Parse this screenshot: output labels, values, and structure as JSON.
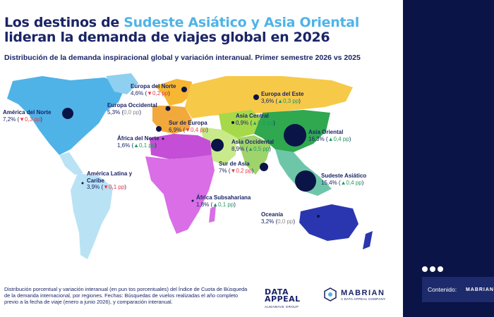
{
  "header": {
    "title_part1": "Los destinos de ",
    "title_highlight": "Sudeste Asiático y Asia Oriental",
    "title_part2": "lideran la demanda de viajes global en 2026",
    "subtitle": "Distribución de la demanda inspiracional global y variación interanual. Primer semestre 2026 vs 2025"
  },
  "chart_data": {
    "type": "bubble-map",
    "title": "Los destinos de Sudeste Asiático y Asia Oriental lideran la demanda de viajes global en 2026",
    "subtitle": "Distribución de la demanda inspiracional global y variación interanual. Primer semestre 2026 vs 2025",
    "value_unit": "% share of demand",
    "change_unit": "pp",
    "regions": [
      {
        "name": "Europa del Norte",
        "share_label": "4,6%",
        "share": 4.6,
        "change_label": "▼0,2 pp",
        "change": -0.2,
        "trend": "down",
        "color": "#f7b733"
      },
      {
        "name": "Europa del Este",
        "share_label": "3,6%",
        "share": 3.6,
        "change_label": "▲0,3 pp",
        "change": 0.3,
        "trend": "up",
        "color": "#f7c948"
      },
      {
        "name": "América del Norte",
        "share_label": "7,2%",
        "share": 7.2,
        "change_label": "▼0,3 pp",
        "change": -0.3,
        "trend": "down",
        "color": "#4fb3e8"
      },
      {
        "name": "Europa Occidental",
        "share_label": "5,3%",
        "share": 5.3,
        "change_label": "0,0 pp",
        "change": 0.0,
        "trend": "flat",
        "color": "#f2a93b"
      },
      {
        "name": "Sur de Europa",
        "share_label": "6,9%",
        "share": 6.9,
        "change_label": "▼0,4 pp",
        "change": -0.4,
        "trend": "down",
        "color": "#f2a93b"
      },
      {
        "name": "Asia Central",
        "share_label": "0,9%",
        "share": 0.9,
        "change_label": "▲0,1 pp",
        "change": 0.1,
        "trend": "up",
        "color": "#a6d94a"
      },
      {
        "name": "Asia Oriental",
        "share_label": "16,3%",
        "share": 16.3,
        "change_label": "▲0,4 pp",
        "change": 0.4,
        "trend": "up",
        "color": "#2fa84f"
      },
      {
        "name": "África del Norte",
        "share_label": "1,6%",
        "share": 1.6,
        "change_label": "▲0,1 pp",
        "change": 0.1,
        "trend": "up",
        "color": "#d96ee6"
      },
      {
        "name": "Asia Occidental",
        "share_label": "8,9%",
        "share": 8.9,
        "change_label": "▲0,5 pp",
        "change": 0.5,
        "trend": "up",
        "color": "#c9ea8a"
      },
      {
        "name": "Sur de Asia",
        "share_label": "7%",
        "share": 7.0,
        "change_label": "▼0,2 pp",
        "change": -0.2,
        "trend": "down",
        "color": "#9fd36b"
      },
      {
        "name": "Sudeste Asiático",
        "share_label": "15,4%",
        "share": 15.4,
        "change_label": "▲0,4 pp",
        "change": 0.4,
        "trend": "up",
        "color": "#6ec6a8"
      },
      {
        "name": "América Latina y Caribe",
        "share_label": "3,9%",
        "share": 3.9,
        "change_label": "▼0,1 pp",
        "change": -0.1,
        "trend": "down",
        "color": "#b9e3f5"
      },
      {
        "name": "África Subsahariana",
        "share_label": "1,8%",
        "share": 1.8,
        "change_label": "▲0,1 pp",
        "change": 0.1,
        "trend": "up",
        "color": "#d96ee6"
      },
      {
        "name": "Oceanía",
        "share_label": "3,2%",
        "share": 3.2,
        "change_label": "0,0 pp",
        "change": 0.0,
        "trend": "flat",
        "color": "#2a36b0"
      }
    ]
  },
  "footer": {
    "note": "Distribución porcentual y variación interanual (en pun tos porcentuales) del Índice de Cuota de Búsqueda de la demanda internacional, por regiones. Fechas: Búsquedas de vuelos realizadas el año completo previo a la fecha de viaje (enero a junio 2026), y comparación interanual.",
    "logo1_line1": "DATA",
    "logo1_line2": "APPEAL",
    "logo1_sub": "ALMAWAVE GROUP",
    "logo2_word": "MABRIAN",
    "logo2_sub": "A DATA APPEAL COMPANY"
  },
  "sidebar": {
    "content_label": "Contenido:",
    "brand": "MABRIAN"
  }
}
